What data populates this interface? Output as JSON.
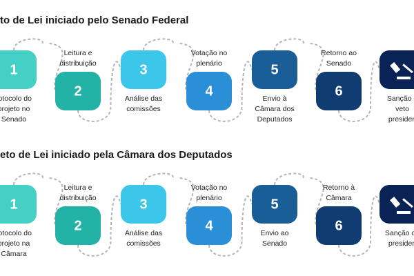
{
  "rows": [
    {
      "title": "to de Lei iniciado pelo Senado Federal",
      "steps": [
        {
          "number": "1",
          "label": [
            "rotocolo do",
            "projeto no",
            "Senado"
          ]
        },
        {
          "number": "2",
          "label": [
            "Leitura e",
            "distribuição"
          ]
        },
        {
          "number": "3",
          "label": [
            "Análise das",
            "comissões"
          ]
        },
        {
          "number": "4",
          "label": [
            "Votação no",
            "plenário"
          ]
        },
        {
          "number": "5",
          "label": [
            "Envio à",
            "Câmara dos",
            "Deputados"
          ]
        },
        {
          "number": "6",
          "label": [
            "Retorno ao",
            "Senado"
          ]
        },
        {
          "label": [
            "Sanção o",
            "veto",
            "presiden"
          ]
        }
      ]
    },
    {
      "title": "eto de Lei iniciado pela Câmara dos Deputados",
      "steps": [
        {
          "number": "1",
          "label": [
            "rotocolo do",
            "projeto na",
            "Câmara"
          ]
        },
        {
          "number": "2",
          "label": [
            "Leitura e",
            "distribuição"
          ]
        },
        {
          "number": "3",
          "label": [
            "Análise das",
            "comissões"
          ]
        },
        {
          "number": "4",
          "label": [
            "Votação no",
            "plenário"
          ]
        },
        {
          "number": "5",
          "label": [
            "Envio ao",
            "Senado"
          ]
        },
        {
          "number": "6",
          "label": [
            "Retorno à",
            "Câmara"
          ]
        },
        {
          "label": [
            "Sanção ou",
            "presiden"
          ]
        }
      ]
    }
  ]
}
